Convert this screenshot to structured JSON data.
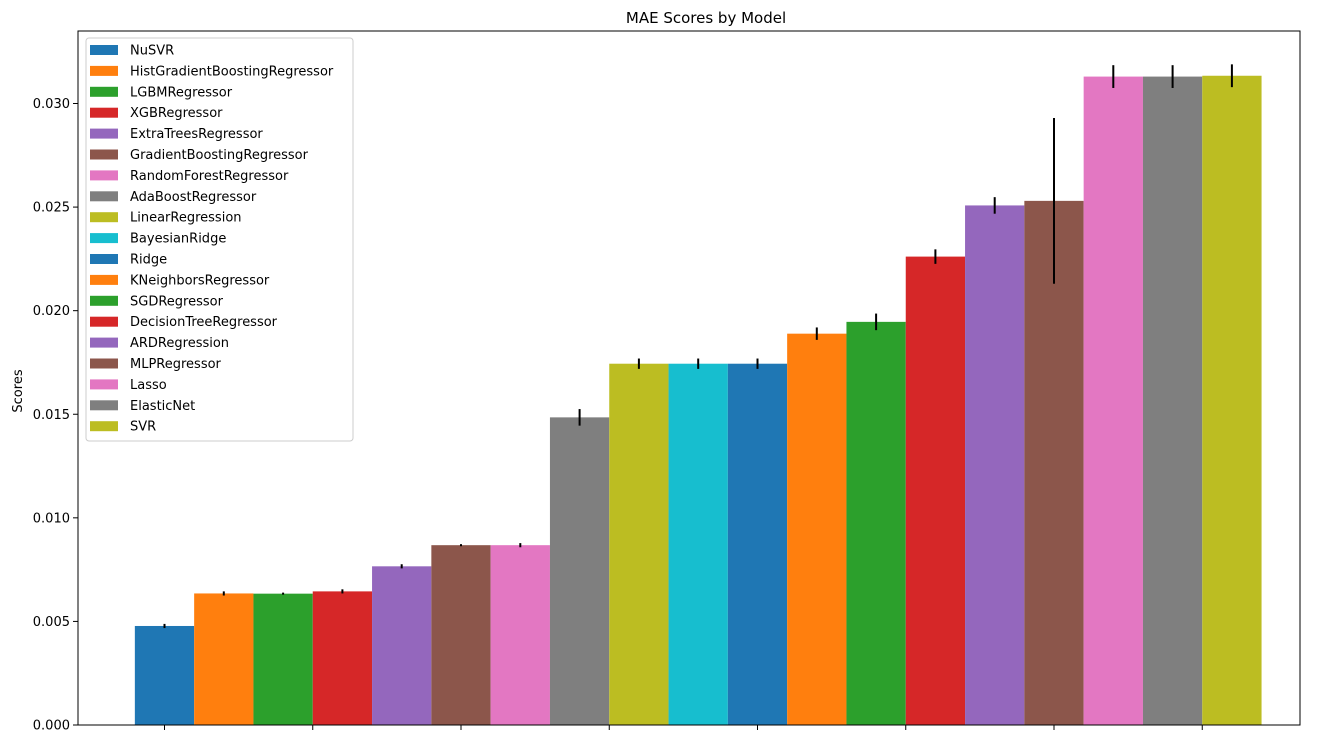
{
  "chart_data": {
    "type": "bar",
    "title": "MAE Scores by Model",
    "xlabel": "",
    "ylabel": "Scores",
    "ylim": [
      0,
      0.0335
    ],
    "yticks": [
      "0.000",
      "0.005",
      "0.010",
      "0.015",
      "0.020",
      "0.025",
      "0.030"
    ],
    "grid": false,
    "legend_position": "upper-left",
    "series": [
      {
        "name": "NuSVR",
        "value": 0.00478,
        "err": 0.0001,
        "color": "#1f77b4"
      },
      {
        "name": "HistGradientBoostingRegressor",
        "value": 0.00635,
        "err": 0.0001,
        "color": "#ff7f0e"
      },
      {
        "name": "LGBMRegressor",
        "value": 0.00634,
        "err": 5e-05,
        "color": "#2ca02c"
      },
      {
        "name": "XGBRegressor",
        "value": 0.00645,
        "err": 0.0001,
        "color": "#d62728"
      },
      {
        "name": "ExtraTreesRegressor",
        "value": 0.00766,
        "err": 0.0001,
        "color": "#9467bd"
      },
      {
        "name": "GradientBoostingRegressor",
        "value": 0.00868,
        "err": 5e-05,
        "color": "#8c564b"
      },
      {
        "name": "RandomForestRegressor",
        "value": 0.00868,
        "err": 0.0001,
        "color": "#e377c2"
      },
      {
        "name": "AdaBoostRegressor",
        "value": 0.01485,
        "err": 0.0004,
        "color": "#7f7f7f"
      },
      {
        "name": "LinearRegression",
        "value": 0.01744,
        "err": 0.00025,
        "color": "#bcbd22"
      },
      {
        "name": "BayesianRidge",
        "value": 0.01744,
        "err": 0.00025,
        "color": "#17becf"
      },
      {
        "name": "Ridge",
        "value": 0.01744,
        "err": 0.00025,
        "color": "#1f77b4"
      },
      {
        "name": "KNeighborsRegressor",
        "value": 0.01889,
        "err": 0.0003,
        "color": "#ff7f0e"
      },
      {
        "name": "SGDRegressor",
        "value": 0.01946,
        "err": 0.0004,
        "color": "#2ca02c"
      },
      {
        "name": "DecisionTreeRegressor",
        "value": 0.02261,
        "err": 0.00035,
        "color": "#d62728"
      },
      {
        "name": "ARDRegression",
        "value": 0.02508,
        "err": 0.0004,
        "color": "#9467bd"
      },
      {
        "name": "MLPRegressor",
        "value": 0.0253,
        "err": 0.004,
        "color": "#8c564b"
      },
      {
        "name": "Lasso",
        "value": 0.0313,
        "err": 0.00055,
        "color": "#e377c2"
      },
      {
        "name": "ElasticNet",
        "value": 0.0313,
        "err": 0.00055,
        "color": "#7f7f7f"
      },
      {
        "name": "SVR",
        "value": 0.03134,
        "err": 0.00055,
        "color": "#bcbd22"
      }
    ]
  }
}
